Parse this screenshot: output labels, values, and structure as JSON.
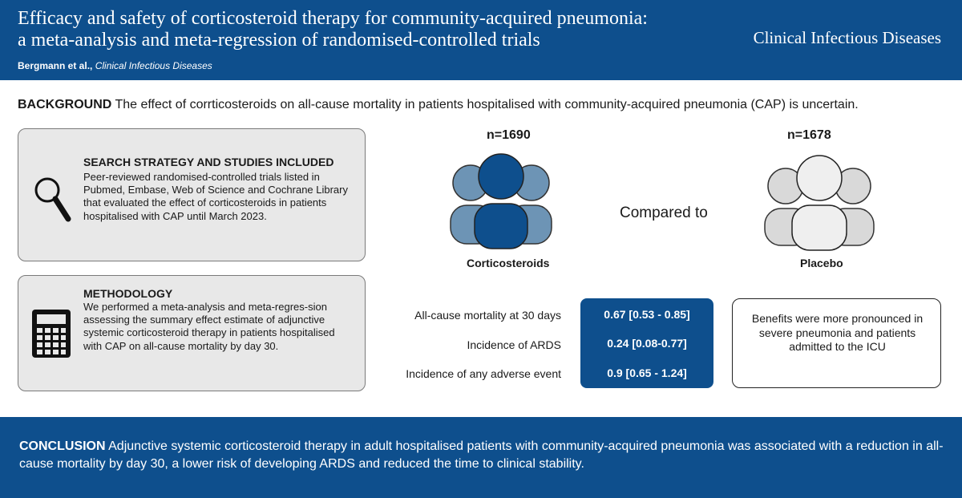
{
  "header": {
    "title_line1": "Efficacy and safety of corticosteroid therapy for community-acquired pneumonia:",
    "title_line2": "a meta-analysis and meta-regression of randomised-controlled trials",
    "authors": "Bergmann et al.,",
    "journal_italic": "Clinical Infectious Diseases",
    "journal": "Clinical Infectious Diseases"
  },
  "background": {
    "label": "BACKGROUND",
    "text": "The effect of corrticosteroids on all-cause mortality in patients hospitalised with community-acquired pneumonia (CAP) is uncertain."
  },
  "search": {
    "heading": "SEARCH STRATEGY AND STUDIES INCLUDED",
    "body": "Peer-reviewed randomised-controlled trials listed in Pubmed, Embase, Web of Science and Cochrane Library that evaluated the effect of corticosteroids in patients hospitalised with CAP until March 2023.",
    "icon": "magnifier-icon"
  },
  "methodology": {
    "heading": "METHODOLOGY",
    "body": "We performed a meta-analysis and meta-regres-sion assessing the summary effect estimate of adjunctive systemic corticosteroid therapy in patients hospitalised with CAP on all-cause mortality by day 30.",
    "icon": "calculator-icon"
  },
  "groups": {
    "treatment": {
      "n": "n=1690",
      "label": "Corticosteroids",
      "color": "#0e4f8d",
      "side_color": "#6d94b5"
    },
    "compared_to": "Compared to",
    "control": {
      "n": "n=1678",
      "label": "Placebo",
      "color": "#efefef",
      "side_color": "#d9d9d9"
    }
  },
  "outcomes": [
    {
      "label": "All-cause mortality at 30 days",
      "value": "0.67 [0.53 - 0.85]"
    },
    {
      "label": "Incidence of ARDS",
      "value": "0.24 [0.08-0.77]"
    },
    {
      "label": "Incidence of any adverse event",
      "value": "0.9 [0.65 - 1.24]"
    }
  ],
  "benefit": "Benefits were more pronounced in severe pneumonia and patients admitted to the ICU",
  "conclusion": {
    "label": "CONCLUSION",
    "text": "Adjunctive systemic corticosteroid therapy in adult hospitalised patients with community-acquired pneumonia was associated with a reduction in all-cause mortality by day 30, a lower risk of developing ARDS and reduced the time to clinical stability."
  },
  "colors": {
    "brand": "#0e4f8d",
    "box_gray": "#e8e8e8"
  }
}
